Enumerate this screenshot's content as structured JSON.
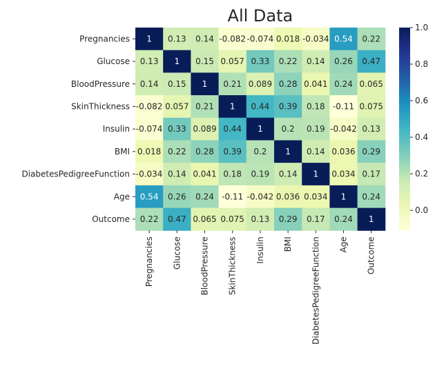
{
  "chart_data": {
    "type": "heatmap",
    "title": "All Data",
    "colormap": "YlGnBu",
    "annotated": true,
    "variables": [
      "Pregnancies",
      "Glucose",
      "BloodPressure",
      "SkinThickness",
      "Insulin",
      "BMI",
      "DiabetesPedigreeFunction",
      "Age",
      "Outcome"
    ],
    "values": [
      [
        1,
        0.13,
        0.14,
        -0.082,
        -0.074,
        0.018,
        -0.034,
        0.54,
        0.22
      ],
      [
        0.13,
        1,
        0.15,
        0.057,
        0.33,
        0.22,
        0.14,
        0.26,
        0.47
      ],
      [
        0.14,
        0.15,
        1,
        0.21,
        0.089,
        0.28,
        0.041,
        0.24,
        0.065
      ],
      [
        -0.082,
        0.057,
        0.21,
        1,
        0.44,
        0.39,
        0.18,
        -0.11,
        0.075
      ],
      [
        -0.074,
        0.33,
        0.089,
        0.44,
        1,
        0.2,
        0.19,
        -0.042,
        0.13
      ],
      [
        0.018,
        0.22,
        0.28,
        0.39,
        0.2,
        1,
        0.14,
        0.036,
        0.29
      ],
      [
        -0.034,
        0.14,
        0.041,
        0.18,
        0.19,
        0.14,
        1,
        0.034,
        0.17
      ],
      [
        0.54,
        0.26,
        0.24,
        -0.11,
        -0.042,
        0.036,
        0.034,
        1,
        0.24
      ],
      [
        0.22,
        0.47,
        0.065,
        0.075,
        0.13,
        0.29,
        0.17,
        0.24,
        1
      ]
    ],
    "labels": [
      [
        "1",
        "0.13",
        "0.14",
        "-0.082",
        "-0.074",
        "0.018",
        "-0.034",
        "0.54",
        "0.22"
      ],
      [
        "0.13",
        "1",
        "0.15",
        "0.057",
        "0.33",
        "0.22",
        "0.14",
        "0.26",
        "0.47"
      ],
      [
        "0.14",
        "0.15",
        "1",
        "0.21",
        "0.089",
        "0.28",
        "0.041",
        "0.24",
        "0.065"
      ],
      [
        "-0.082",
        "0.057",
        "0.21",
        "1",
        "0.44",
        "0.39",
        "0.18",
        "-0.11",
        "0.075"
      ],
      [
        "-0.074",
        "0.33",
        "0.089",
        "0.44",
        "1",
        "0.2",
        "0.19",
        "-0.042",
        "0.13"
      ],
      [
        "0.018",
        "0.22",
        "0.28",
        "0.39",
        "0.2",
        "1",
        "0.14",
        "0.036",
        "0.29"
      ],
      [
        "-0.034",
        "0.14",
        "0.041",
        "0.18",
        "0.19",
        "0.14",
        "1",
        "0.034",
        "0.17"
      ],
      [
        "0.54",
        "0.26",
        "0.24",
        "-0.11",
        "-0.042",
        "0.036",
        "0.034",
        "1",
        "0.24"
      ],
      [
        "0.22",
        "0.47",
        "0.065",
        "0.075",
        "0.13",
        "0.29",
        "0.17",
        "0.24",
        "1"
      ]
    ],
    "color_range": [
      -0.11,
      1.0
    ],
    "colorbar": {
      "ticks": [
        0.0,
        0.2,
        0.4,
        0.6,
        0.8,
        1.0
      ],
      "tick_labels": [
        "0.0",
        "0.2",
        "0.4",
        "0.6",
        "0.8",
        "1.0"
      ]
    }
  }
}
